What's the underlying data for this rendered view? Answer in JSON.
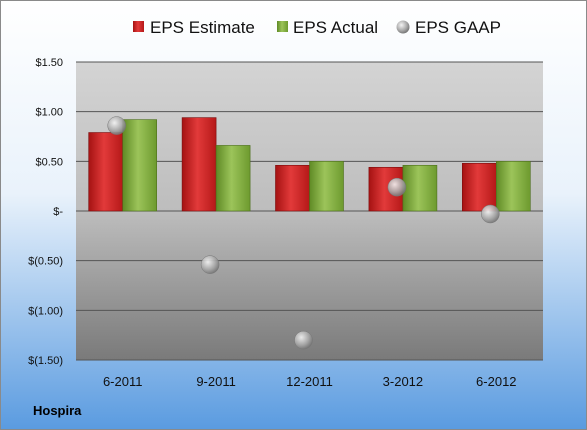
{
  "company": "Hospira",
  "colors": {
    "estimate": "#cc1f1f",
    "actual": "#7fab3a",
    "gaap": "#b8b8b8",
    "frame_top": "#ffffff",
    "frame_bottom": "#5a9be0"
  },
  "chart_data": {
    "type": "bar",
    "categories": [
      "6-2011",
      "9-2011",
      "12-2011",
      "3-2012",
      "6-2012"
    ],
    "series": [
      {
        "name": "EPS Estimate",
        "kind": "bar",
        "values": [
          0.79,
          0.94,
          0.46,
          0.44,
          0.48
        ]
      },
      {
        "name": "EPS Actual",
        "kind": "bar",
        "values": [
          0.92,
          0.66,
          0.5,
          0.46,
          0.5
        ]
      },
      {
        "name": "EPS GAAP",
        "kind": "scatter",
        "values": [
          0.86,
          -0.54,
          -1.3,
          0.24,
          -0.03
        ]
      }
    ],
    "ylim": [
      -1.5,
      1.5
    ],
    "yticks": [
      1.5,
      1.0,
      0.5,
      0,
      -0.5,
      -1.0,
      -1.5
    ],
    "ytick_labels": [
      "$1.50",
      "$1.00",
      "$0.50",
      "$-",
      "$(0.50)",
      "$(1.00)",
      "$(1.50)"
    ],
    "grid": true,
    "legend_position": "top"
  }
}
